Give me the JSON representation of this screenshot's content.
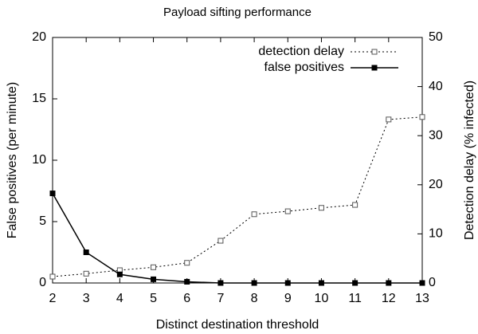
{
  "chart_data": {
    "type": "line",
    "title": "Payload sifting performance",
    "xlabel": "Distinct destination threshold",
    "ylabel": "False positives (per minute)",
    "y2label": "Detection delay (% infected)",
    "x": [
      2,
      3,
      4,
      5,
      6,
      7,
      8,
      9,
      10,
      11,
      12,
      13
    ],
    "xlim": [
      2,
      13
    ],
    "xticks": [
      2,
      3,
      4,
      5,
      6,
      7,
      8,
      9,
      10,
      11,
      12,
      13
    ],
    "ylim": [
      0,
      20
    ],
    "yticks": [
      0,
      5,
      10,
      15,
      20
    ],
    "y2lim": [
      0,
      50
    ],
    "y2ticks": [
      0,
      10,
      20,
      30,
      40,
      50
    ],
    "legend": "upper right",
    "series": [
      {
        "name": "detection delay",
        "color": "#000000",
        "axis": "y2",
        "style": "dotted",
        "marker": "open-square",
        "values": [
          1.3,
          1.9,
          2.6,
          3.2,
          4.1,
          8.6,
          14,
          14.6,
          15.3,
          15.9,
          33.3,
          33.8
        ]
      },
      {
        "name": "false positives",
        "color": "#000000",
        "axis": "y",
        "style": "solid",
        "marker": "filled-square",
        "values": [
          7.3,
          2.5,
          0.7,
          0.3,
          0.1,
          0,
          0,
          0,
          0,
          0,
          0,
          0
        ]
      }
    ]
  }
}
